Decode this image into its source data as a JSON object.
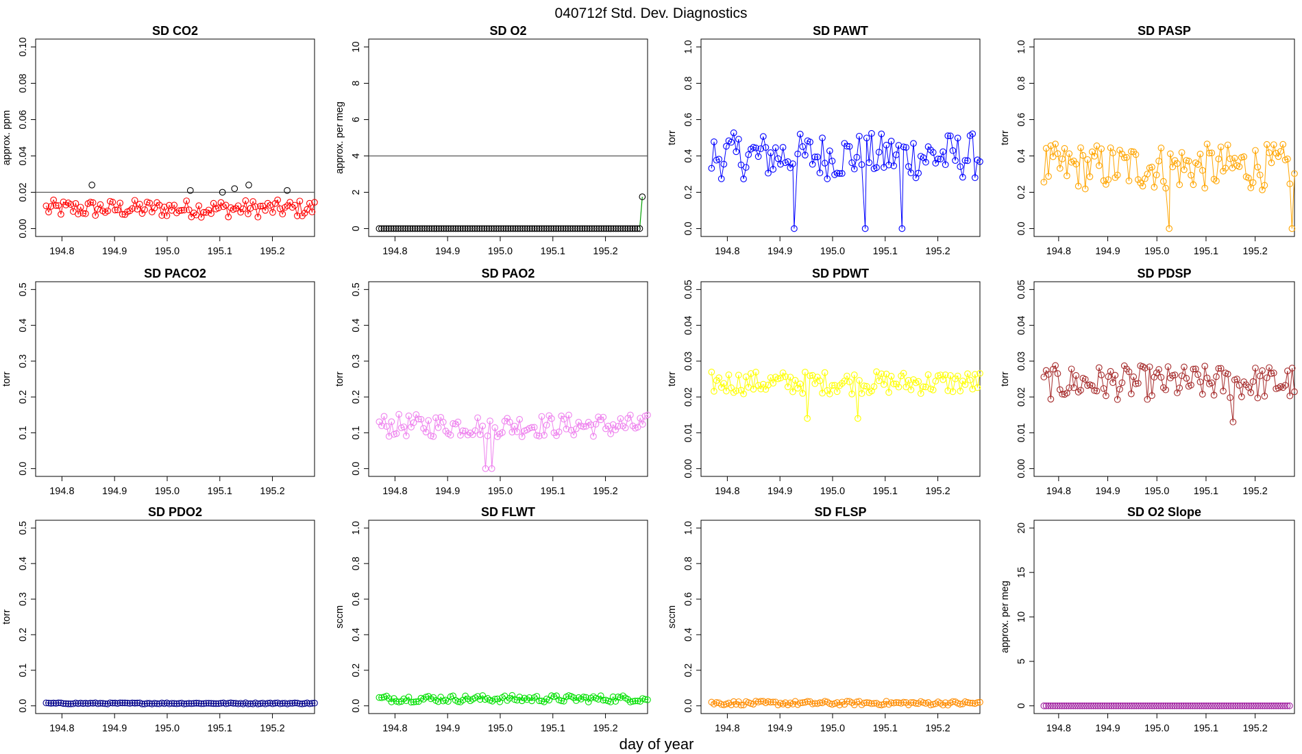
{
  "figure": {
    "title": "040712f   Std. Dev. Diagnostics",
    "xlabel": "day of year"
  },
  "chart_data": [
    {
      "type": "scatter",
      "title": "SD CO2",
      "ylabel": "approx. ppm",
      "xlim": [
        194.75,
        195.28
      ],
      "ylim": [
        0,
        0.1
      ],
      "yticks": [
        "0.00",
        "0.02",
        "0.04",
        "0.06",
        "0.08",
        "0.10"
      ],
      "xticks": [
        "194.8",
        "194.9",
        "195.0",
        "195.1",
        "195.2"
      ],
      "color": "#ff0000",
      "highlight_color": "#000000",
      "reference_line": 0.02,
      "connect": true,
      "series_kind": "noisy",
      "x": [
        194.77,
        195.28
      ],
      "values": {
        "mean": 0.011,
        "spread": 0.003,
        "min": 0.004,
        "max": 0.018
      },
      "highlights": [
        [
          194.857,
          0.024
        ],
        [
          195.044,
          0.021
        ],
        [
          195.105,
          0.02
        ],
        [
          195.128,
          0.022
        ],
        [
          195.155,
          0.024
        ],
        [
          195.228,
          0.021
        ]
      ]
    },
    {
      "type": "scatter",
      "title": "SD O2",
      "ylabel": "approx. per meg",
      "xlim": [
        194.75,
        195.28
      ],
      "ylim": [
        0,
        10
      ],
      "yticks": [
        "0",
        "2",
        "4",
        "6",
        "8",
        "10"
      ],
      "xticks": [
        "194.8",
        "194.9",
        "195.0",
        "195.1",
        "195.2"
      ],
      "color": "#000000",
      "line_color": "#00a000",
      "reference_line": 4,
      "connect": false,
      "series_kind": "constant",
      "x": [
        194.77,
        195.265
      ],
      "constant": 0,
      "extra_points": [
        [
          195.27,
          1.75
        ]
      ],
      "extra_line": [
        [
          195.265,
          0
        ],
        [
          195.27,
          1.75
        ]
      ]
    },
    {
      "type": "scatter",
      "title": "SD PAWT",
      "ylabel": "torr",
      "xlim": [
        194.75,
        195.28
      ],
      "ylim": [
        0,
        1
      ],
      "yticks": [
        "0.0",
        "0.2",
        "0.4",
        "0.6",
        "0.8",
        "1.0"
      ],
      "xticks": [
        "194.8",
        "194.9",
        "195.0",
        "195.1",
        "195.2"
      ],
      "color": "#0000ff",
      "connect": true,
      "series_kind": "noisy",
      "x": [
        194.77,
        195.28
      ],
      "values": {
        "mean": 0.4,
        "spread": 0.08,
        "min": 0.22,
        "max": 0.57
      },
      "dips": [
        [
          194.927,
          0
        ],
        [
          195.062,
          0
        ],
        [
          195.132,
          0
        ]
      ]
    },
    {
      "type": "scatter",
      "title": "SD PASP",
      "ylabel": "torr",
      "xlim": [
        194.75,
        195.28
      ],
      "ylim": [
        0,
        1
      ],
      "yticks": [
        "0.0",
        "0.2",
        "0.4",
        "0.6",
        "0.8",
        "1.0"
      ],
      "xticks": [
        "194.8",
        "194.9",
        "195.0",
        "195.1",
        "195.2"
      ],
      "color": "#ffa500",
      "connect": true,
      "series_kind": "noisy",
      "x": [
        194.77,
        195.28
      ],
      "values": {
        "mean": 0.34,
        "spread": 0.08,
        "min": 0.18,
        "max": 0.6
      },
      "dips": [
        [
          195.025,
          0
        ],
        [
          195.275,
          0
        ]
      ]
    },
    {
      "type": "scatter",
      "title": "SD PACO2",
      "ylabel": "torr",
      "xlim": [
        194.75,
        195.28
      ],
      "ylim": [
        0,
        0.5
      ],
      "yticks": [
        "0.0",
        "0.1",
        "0.2",
        "0.3",
        "0.4",
        "0.5"
      ],
      "xticks": [
        "194.8",
        "194.9",
        "195.0",
        "195.1",
        "195.2"
      ],
      "color": "#000000",
      "connect": false,
      "series_kind": "empty"
    },
    {
      "type": "scatter",
      "title": "SD PAO2",
      "ylabel": "torr",
      "xlim": [
        194.75,
        195.28
      ],
      "ylim": [
        0,
        0.5
      ],
      "yticks": [
        "0.0",
        "0.1",
        "0.2",
        "0.3",
        "0.4",
        "0.5"
      ],
      "xticks": [
        "194.8",
        "194.9",
        "195.0",
        "195.1",
        "195.2"
      ],
      "color": "#ee82ee",
      "connect": true,
      "series_kind": "noisy",
      "x": [
        194.77,
        195.28
      ],
      "values": {
        "mean": 0.12,
        "spread": 0.02,
        "min": 0.07,
        "max": 0.19
      },
      "dips": [
        [
          194.972,
          0
        ],
        [
          194.984,
          0
        ]
      ]
    },
    {
      "type": "scatter",
      "title": "SD PDWT",
      "ylabel": "torr",
      "xlim": [
        194.75,
        195.28
      ],
      "ylim": [
        0,
        0.05
      ],
      "yticks": [
        "0.00",
        "0.01",
        "0.02",
        "0.03",
        "0.04",
        "0.05"
      ],
      "xticks": [
        "194.8",
        "194.9",
        "195.0",
        "195.1",
        "195.2"
      ],
      "color": "#ffff00",
      "connect": true,
      "series_kind": "noisy",
      "x": [
        194.77,
        195.28
      ],
      "values": {
        "mean": 0.024,
        "spread": 0.002,
        "min": 0.018,
        "max": 0.031
      },
      "dips": [
        [
          194.952,
          0.014
        ],
        [
          195.048,
          0.014
        ]
      ]
    },
    {
      "type": "scatter",
      "title": "SD PDSP",
      "ylabel": "torr",
      "xlim": [
        194.75,
        195.28
      ],
      "ylim": [
        0,
        0.05
      ],
      "yticks": [
        "0.00",
        "0.01",
        "0.02",
        "0.03",
        "0.04",
        "0.05"
      ],
      "xticks": [
        "194.8",
        "194.9",
        "195.0",
        "195.1",
        "195.2"
      ],
      "color": "#a52a2a",
      "connect": true,
      "series_kind": "noisy",
      "x": [
        194.77,
        195.28
      ],
      "values": {
        "mean": 0.024,
        "spread": 0.003,
        "min": 0.016,
        "max": 0.031
      },
      "dips": [
        [
          195.155,
          0.013
        ]
      ]
    },
    {
      "type": "scatter",
      "title": "SD PDO2",
      "ylabel": "torr",
      "xlim": [
        194.75,
        195.28
      ],
      "ylim": [
        0,
        0.5
      ],
      "yticks": [
        "0.0",
        "0.1",
        "0.2",
        "0.3",
        "0.4",
        "0.5"
      ],
      "xticks": [
        "194.8",
        "194.9",
        "195.0",
        "195.1",
        "195.2"
      ],
      "color": "#00008b",
      "connect": true,
      "series_kind": "noisy",
      "x": [
        194.77,
        195.28
      ],
      "values": {
        "mean": 0.007,
        "spread": 0.001,
        "min": 0.005,
        "max": 0.009
      }
    },
    {
      "type": "scatter",
      "title": "SD FLWT",
      "ylabel": "sccm",
      "xlim": [
        194.75,
        195.28
      ],
      "ylim": [
        0,
        1
      ],
      "yticks": [
        "0.0",
        "0.2",
        "0.4",
        "0.6",
        "0.8",
        "1.0"
      ],
      "xticks": [
        "194.8",
        "194.9",
        "195.0",
        "195.1",
        "195.2"
      ],
      "color": "#00e000",
      "connect": true,
      "series_kind": "noisy",
      "x": [
        194.77,
        195.28
      ],
      "values": {
        "mean": 0.04,
        "spread": 0.012,
        "min": 0.02,
        "max": 0.1
      }
    },
    {
      "type": "scatter",
      "title": "SD FLSP",
      "ylabel": "sccm",
      "xlim": [
        194.75,
        195.28
      ],
      "ylim": [
        0,
        1
      ],
      "yticks": [
        "0.0",
        "0.2",
        "0.4",
        "0.6",
        "0.8",
        "1.0"
      ],
      "xticks": [
        "194.8",
        "194.9",
        "195.0",
        "195.1",
        "195.2"
      ],
      "color": "#ff8c00",
      "connect": true,
      "series_kind": "noisy",
      "x": [
        194.77,
        195.28
      ],
      "values": {
        "mean": 0.015,
        "spread": 0.007,
        "min": 0.0,
        "max": 0.03
      }
    },
    {
      "type": "scatter",
      "title": "SD O2 Slope",
      "ylabel": "approx. per meg",
      "xlim": [
        194.75,
        195.28
      ],
      "ylim": [
        0,
        20
      ],
      "yticks": [
        "0",
        "5",
        "10",
        "15",
        "20"
      ],
      "xticks": [
        "194.8",
        "194.9",
        "195.0",
        "195.1",
        "195.2"
      ],
      "color": "#a020a0",
      "connect": false,
      "series_kind": "constant",
      "x": [
        194.77,
        195.27
      ],
      "constant": 0
    }
  ]
}
